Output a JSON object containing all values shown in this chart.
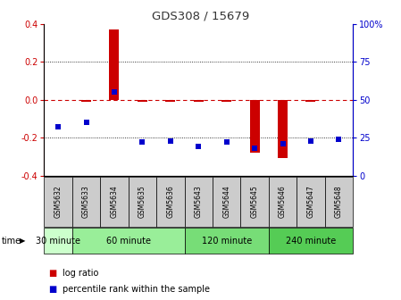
{
  "title": "GDS308 / 15679",
  "samples": [
    "GSM5632",
    "GSM5633",
    "GSM5634",
    "GSM5635",
    "GSM5636",
    "GSM5643",
    "GSM5644",
    "GSM5645",
    "GSM5646",
    "GSM5647",
    "GSM5648"
  ],
  "log_ratio": [
    0.0,
    -0.01,
    0.37,
    -0.01,
    -0.01,
    -0.01,
    -0.01,
    -0.28,
    -0.31,
    -0.01,
    0.0
  ],
  "percentile_rank": [
    32,
    35,
    55,
    22,
    23,
    19,
    22,
    18,
    21,
    23,
    24
  ],
  "groups": [
    {
      "label": "30 minute",
      "indices": [
        0
      ],
      "color": "#ccffcc"
    },
    {
      "label": "60 minute",
      "indices": [
        1,
        2,
        3,
        4
      ],
      "color": "#99ee99"
    },
    {
      "label": "120 minute",
      "indices": [
        5,
        6,
        7
      ],
      "color": "#77dd77"
    },
    {
      "label": "240 minute",
      "indices": [
        8,
        9,
        10
      ],
      "color": "#55cc55"
    }
  ],
  "ylim": [
    -0.4,
    0.4
  ],
  "yticks_left": [
    -0.4,
    -0.2,
    0.0,
    0.2,
    0.4
  ],
  "yticks_right": [
    0,
    25,
    50,
    75,
    100
  ],
  "bar_color": "#cc0000",
  "dot_color": "#0000cc",
  "zero_line_color": "#cc0000",
  "grid_color": "#000000",
  "background_color": "#ffffff",
  "sample_bg_color": "#cccccc",
  "bar_width": 0.35
}
